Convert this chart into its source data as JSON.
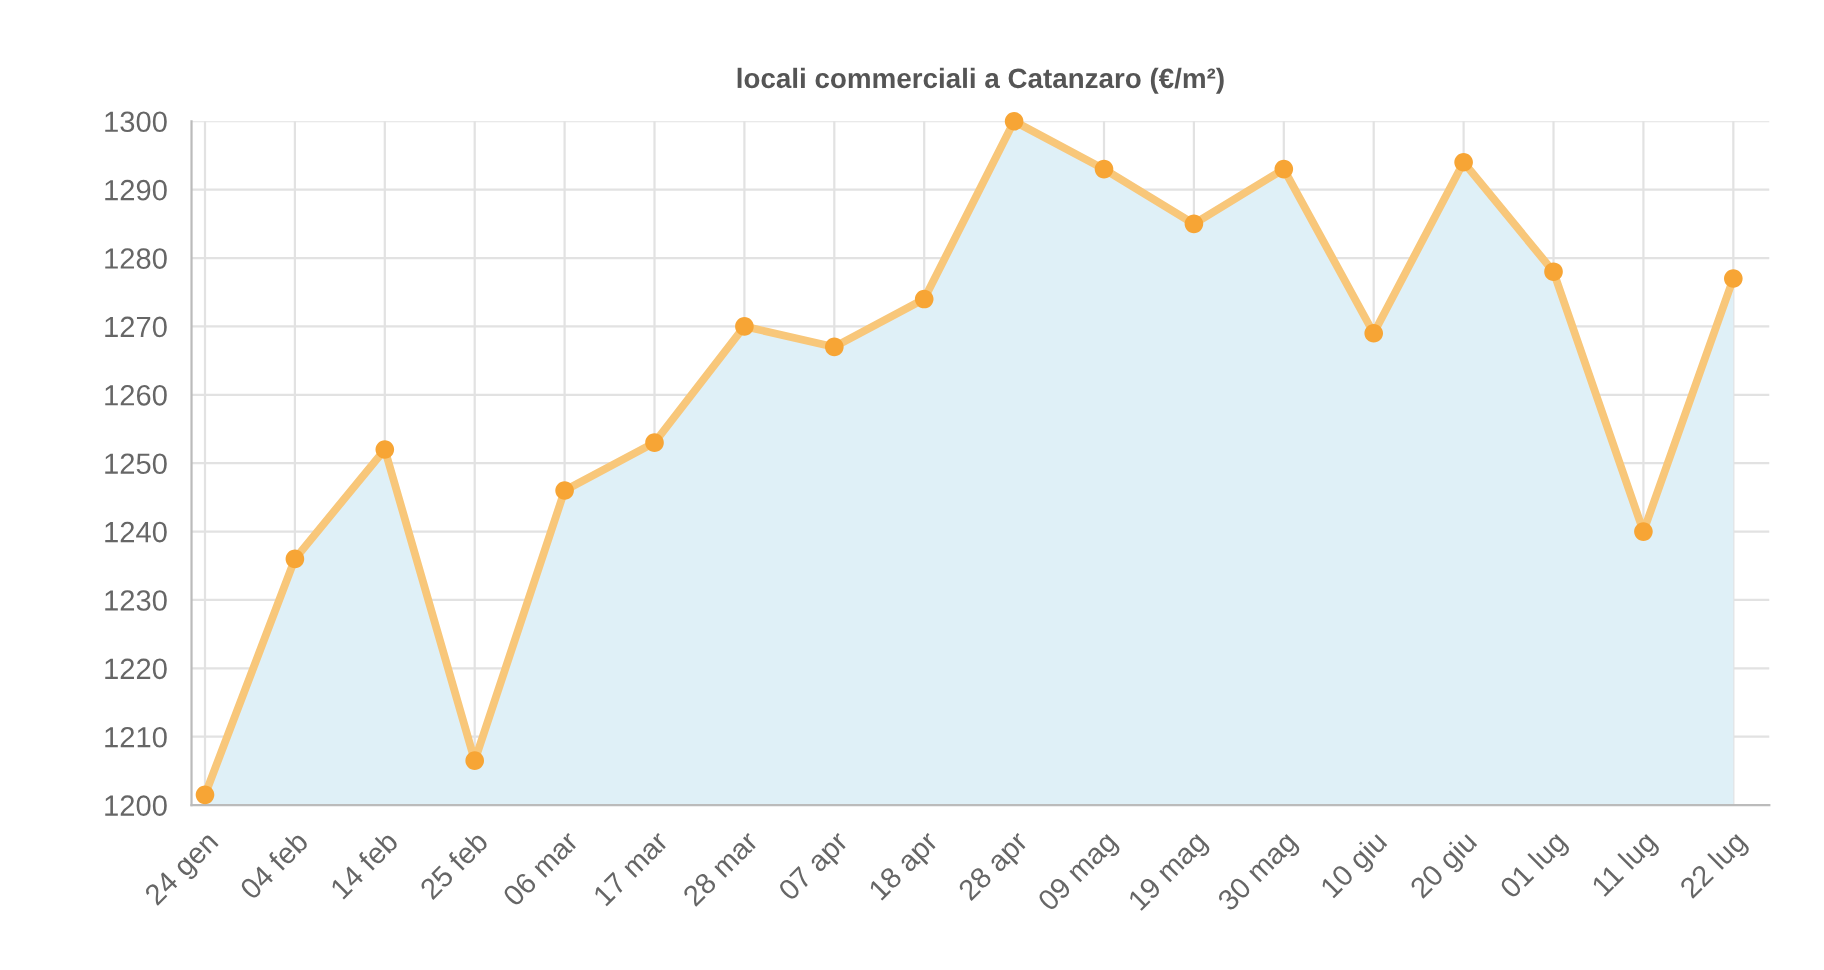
{
  "chart_data": {
    "type": "area",
    "title": "locali commerciali a Catanzaro (€/m²)",
    "categories": [
      "24 gen",
      "04 feb",
      "14 feb",
      "25 feb",
      "06 mar",
      "17 mar",
      "28 mar",
      "07 apr",
      "18 apr",
      "28 apr",
      "09 mag",
      "19 mag",
      "30 mag",
      "10 giu",
      "20 giu",
      "01 lug",
      "11 lug",
      "22 lug"
    ],
    "series": [
      {
        "color": "#dff0f7",
        "values": [
          1201.5,
          1236,
          1252,
          1206.5,
          1246,
          1253,
          1270,
          1267,
          1274,
          1300,
          1293,
          1285,
          1293,
          1269,
          1294,
          1278,
          1240,
          1277
        ]
      }
    ],
    "ylim": [
      1200,
      1300
    ],
    "yticks": [
      1200,
      1210,
      1220,
      1230,
      1240,
      1250,
      1260,
      1270,
      1280,
      1290,
      1300
    ],
    "grid": true,
    "marker": "circle",
    "line_style": "solid"
  }
}
